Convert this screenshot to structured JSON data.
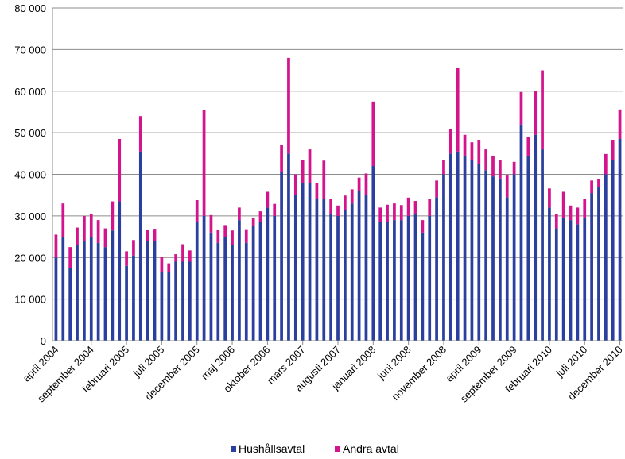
{
  "chart_data": {
    "type": "bar",
    "stacked": true,
    "title": "",
    "xlabel": "",
    "ylabel": "",
    "ylim": [
      0,
      80000
    ],
    "yticks": [
      0,
      10000,
      20000,
      30000,
      40000,
      50000,
      60000,
      70000,
      80000
    ],
    "ytick_labels": [
      "0",
      "10 000",
      "20 000",
      "30 000",
      "40 000",
      "50 000",
      "60 000",
      "70 000",
      "80 000"
    ],
    "grid": "horizontal",
    "legend": "bottom",
    "x_start": "april 2004",
    "x_tick_labels": [
      {
        "index": 0,
        "label": "april 2004"
      },
      {
        "index": 5,
        "label": "september 2004"
      },
      {
        "index": 10,
        "label": "februari 2005"
      },
      {
        "index": 15,
        "label": "juli 2005"
      },
      {
        "index": 20,
        "label": "december 2005"
      },
      {
        "index": 25,
        "label": "maj 2006"
      },
      {
        "index": 30,
        "label": "oktober 2006"
      },
      {
        "index": 35,
        "label": "mars 2007"
      },
      {
        "index": 40,
        "label": "augusti 2007"
      },
      {
        "index": 45,
        "label": "januari 2008"
      },
      {
        "index": 50,
        "label": "juni 2008"
      },
      {
        "index": 55,
        "label": "november 2008"
      },
      {
        "index": 60,
        "label": "april 2009"
      },
      {
        "index": 65,
        "label": "september 2009"
      },
      {
        "index": 70,
        "label": "februari 2010"
      },
      {
        "index": 75,
        "label": "juli 2010"
      },
      {
        "index": 80,
        "label": "december 2010"
      }
    ],
    "series": [
      {
        "name": "Hushållsavtal",
        "color": "#2a3f9e",
        "values": [
          20000,
          25000,
          17500,
          23000,
          24000,
          25000,
          23500,
          22500,
          26500,
          33500,
          18000,
          20500,
          45500,
          24000,
          24000,
          16500,
          16500,
          19000,
          19000,
          19000,
          28500,
          30000,
          26000,
          23500,
          25000,
          23000,
          29000,
          23500,
          27500,
          28500,
          32000,
          30000,
          40500,
          45000,
          35000,
          38000,
          38000,
          34000,
          34000,
          30500,
          30000,
          31500,
          33000,
          36000,
          35000,
          42000,
          28500,
          28500,
          29000,
          29000,
          30000,
          30500,
          26000,
          30000,
          34500,
          40000,
          45000,
          45500,
          44500,
          43500,
          42500,
          41000,
          39500,
          39000,
          34500,
          40000,
          52000,
          44500,
          49500,
          46000,
          32000,
          27000,
          29500,
          29000,
          28000,
          29500,
          35500,
          37000,
          40000,
          43500,
          48500
        ]
      },
      {
        "name": "Andra avtal",
        "color": "#d4148c",
        "values": [
          5500,
          8000,
          5000,
          4200,
          6000,
          5500,
          5500,
          4500,
          7000,
          15000,
          3500,
          3700,
          8500,
          2600,
          2900,
          3700,
          2100,
          1800,
          4200,
          2700,
          5300,
          25500,
          4200,
          3200,
          2800,
          3500,
          3000,
          3300,
          2100,
          2600,
          3800,
          2900,
          6500,
          23000,
          5000,
          5500,
          8000,
          3900,
          9300,
          3600,
          2500,
          3400,
          3400,
          3200,
          5200,
          15500,
          3500,
          4200,
          4000,
          3600,
          4400,
          3100,
          3000,
          4000,
          4000,
          3500,
          5800,
          20000,
          5000,
          4200,
          5800,
          5000,
          5000,
          4500,
          5200,
          3000,
          7800,
          4500,
          10500,
          19000,
          4600,
          3400,
          6300,
          3500,
          4000,
          4600,
          3000,
          1800,
          4900,
          4800,
          7100
        ]
      }
    ]
  }
}
